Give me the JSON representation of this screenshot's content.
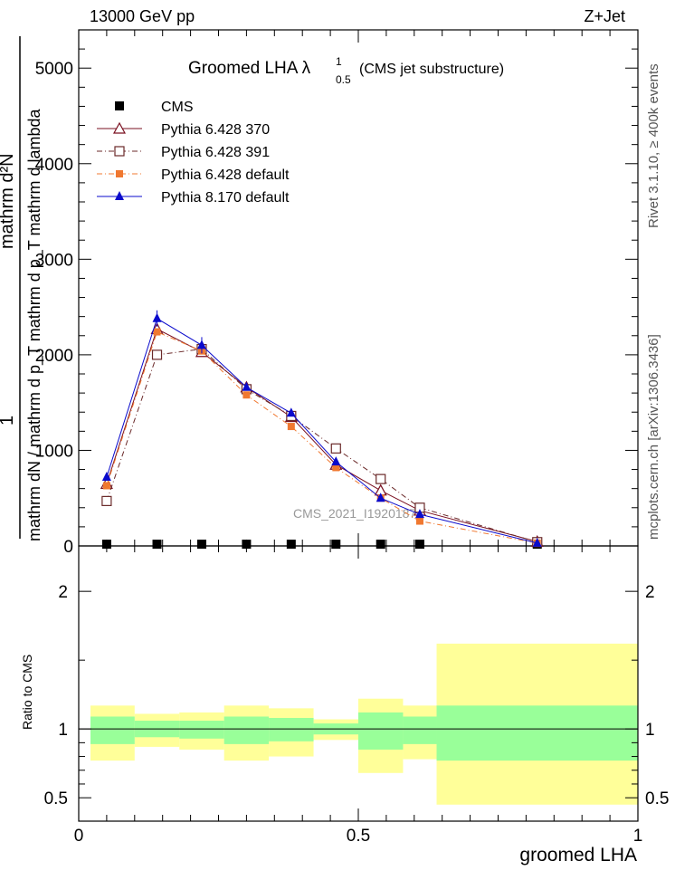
{
  "header": {
    "energy": "13000 GeV pp",
    "process": "Z+Jet"
  },
  "side_notes": {
    "rivet": "Rivet 3.1.10, ≥ 400k events",
    "mcplots": "mcplots.cern.ch [arXiv:1306.3436]"
  },
  "analysis_id": "CMS_2021_I1920187",
  "chart_data": [
    {
      "type": "line",
      "panel": "main",
      "title": "Groomed LHA  λ",
      "title_sup": "1",
      "title_sub": "0.5",
      "title_suffix": "(CMS jet substructure)",
      "ylabel_num": "1",
      "ylabel_den": "mathrm dN / mathrm d p_T mathrm d p_T mathrm d lambda",
      "ylabel_num2": "mathrm d²N",
      "xlim": [
        0,
        1
      ],
      "ylim": [
        0,
        5400
      ],
      "y_ticks": [
        0,
        1000,
        2000,
        3000,
        4000,
        5000
      ],
      "y_tick_labels": [
        "0",
        "1000",
        "2000",
        "3000",
        "4000",
        "5000"
      ],
      "x_bin_edges": [
        0,
        0.1,
        0.18,
        0.26,
        0.34,
        0.42,
        0.5,
        0.58,
        0.64,
        1.0
      ],
      "x": [
        0.05,
        0.14,
        0.22,
        0.3,
        0.38,
        0.46,
        0.54,
        0.61,
        0.82
      ],
      "series": [
        {
          "name": "CMS",
          "marker": "filled-square",
          "color": "#000000",
          "line": "none",
          "values": [
            18,
            18,
            18,
            18,
            18,
            18,
            18,
            18,
            18
          ]
        },
        {
          "name": "Pythia 6.428 370",
          "marker": "open-triangle",
          "color": "#7a1020",
          "line": "solid",
          "values": [
            650,
            2270,
            2030,
            1660,
            1350,
            850,
            580,
            370,
            45
          ]
        },
        {
          "name": "Pythia 6.428 391",
          "marker": "open-square",
          "color": "#6b2a2a",
          "line": "dashdot",
          "values": [
            470,
            2000,
            2060,
            1640,
            1360,
            1020,
            700,
            400,
            40
          ]
        },
        {
          "name": "Pythia 6.428 default",
          "marker": "filled-square-small",
          "color": "#f07830",
          "line": "dashdot",
          "values": [
            630,
            2240,
            2040,
            1580,
            1250,
            820,
            500,
            260,
            30
          ]
        },
        {
          "name": "Pythia 8.170 default",
          "marker": "filled-triangle",
          "color": "#0a0acc",
          "line": "solid",
          "values": [
            720,
            2380,
            2100,
            1660,
            1390,
            880,
            500,
            330,
            30
          ]
        }
      ]
    },
    {
      "type": "area",
      "panel": "ratio",
      "ylabel": "Ratio to CMS",
      "xlabel": "groomed LHA",
      "xlim": [
        0,
        1
      ],
      "ylim": [
        0.33,
        2.33
      ],
      "y_ticks": [
        0.5,
        1,
        2
      ],
      "y_tick_labels": [
        "0.5",
        "1",
        "2"
      ],
      "x_ticks": [
        0,
        0.5,
        1
      ],
      "x_tick_labels": [
        "0",
        "0.5",
        "1"
      ],
      "x_bin_edges": [
        0,
        0.1,
        0.18,
        0.26,
        0.34,
        0.42,
        0.5,
        0.58,
        0.64,
        1.0
      ],
      "stat_band": {
        "color": "#99ff99",
        "low": [
          0.89,
          0.94,
          0.93,
          0.89,
          0.91,
          0.96,
          0.85,
          0.89,
          0.77
        ],
        "high": [
          1.09,
          1.06,
          1.06,
          1.09,
          1.08,
          1.04,
          1.12,
          1.09,
          1.17
        ]
      },
      "syst_band": {
        "color": "#ffff99",
        "low": [
          0.77,
          0.87,
          0.85,
          0.77,
          0.8,
          0.92,
          0.68,
          0.78,
          0.45
        ],
        "high": [
          1.17,
          1.11,
          1.12,
          1.17,
          1.15,
          1.07,
          1.22,
          1.17,
          1.62
        ]
      },
      "reference_line": 1
    }
  ]
}
